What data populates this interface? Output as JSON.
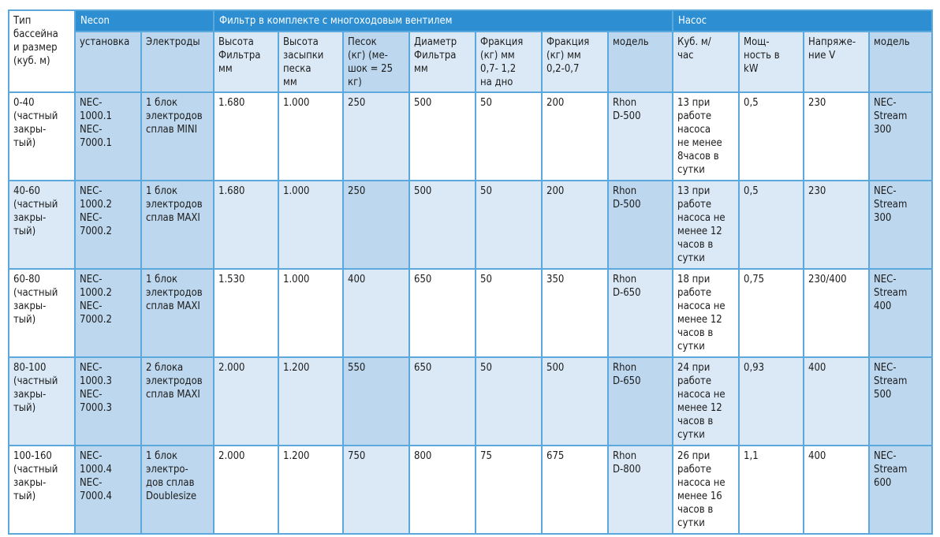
{
  "table": {
    "corner_header": "Тип\nбассейна\nи размер\n(куб. м)",
    "groups": [
      "Necon",
      "Фильтр в комплекте с  многоходовым вентилем",
      "Насос"
    ],
    "columns": [
      "установка",
      "Электроды",
      "Высота\nФильтра\nмм",
      "Высота\nзасыпки\nпеска\nмм",
      "Песок\n(кг) (ме-\nшок = 25\nкг)",
      "Диаметр\nФильтра\nмм",
      "Фракция\n(кг)   мм\n0,7- 1,2\nна  дно",
      "Фракция\n(кг) мм\n0,2-0,7",
      "модель",
      "Куб. м/\nчас",
      "Мощ-\nность в\nkW",
      "Напряже-\nние V",
      "модель"
    ],
    "rows": [
      [
        "0-40\n(частный\nзакры-\nтый)",
        "NEC-\n1000.1\nNEC-\n7000.1",
        "1 блок\nэлектродов\nсплав MINI",
        "1.680",
        "1.000",
        "250",
        "500",
        "50",
        "200",
        "Rhon\nD-500",
        "13 при\nработе\nнасоса\nне менее\n8часов в\nсутки",
        "0,5",
        "230",
        "NEC-\nStream\n300"
      ],
      [
        "40-60\n(частный\nзакры-\nтый)",
        "NEC-\n1000.2\nNEC-\n7000.2",
        "1 блок\nэлектродов\nсплав MAXI",
        "1.680",
        "1.000",
        "250",
        "500",
        "50",
        "200",
        "Rhon\nD-500",
        "13 при\nработе\nнасоса не\nменее 12\nчасов в\nсутки",
        "0,5",
        "230",
        "NEC-\nStream\n300"
      ],
      [
        "60-80\n(частный\nзакры-\nтый)",
        "NEC-\n1000.2\nNEC-\n7000.2",
        "1 блок\nэлектродов\nсплав MAXI",
        "1.530",
        "1.000",
        "400",
        "650",
        "50",
        "350",
        "Rhon\nD-650",
        "18 при\nработе\nнасоса не\nменее 12\nчасов в\nсутки",
        "0,75",
        "230/400",
        "NEC-\nStream\n400"
      ],
      [
        "80-100\n(частный\nзакры-\nтый)",
        "NEC-\n1000.3\nNEC-\n7000.3",
        "2 блока\nэлектродов\nсплав MAXI",
        "2.000",
        "1.200",
        "550",
        "650",
        "50",
        "500",
        "Rhon\nD-650",
        "24 при\nработе\nнасоса не\nменее 12\nчасов в\nсутки",
        "0,93",
        "400",
        "NEC-\nStream\n500"
      ],
      [
        "100-160\n(частный\nзакры-\nтый)",
        "NEC-\n1000.4\nNEC-\n7000.4",
        " 1 блок\nэлектро-\nдов сплав\nDoublesize",
        "2.000",
        "1.200",
        "750",
        "800",
        "75",
        "675",
        "Rhon\nD-800",
        "26 при\nработе\nнасоса не\nменее 16\nчасов в\nсутки",
        "1,1",
        "400",
        "NEC-\nStream\n600"
      ]
    ]
  },
  "colors": {
    "header_group": "#2d8fd2",
    "border": "#5aa8dc",
    "shade_light": "#dbe9f6",
    "shade_mid": "#bdd7ee"
  }
}
